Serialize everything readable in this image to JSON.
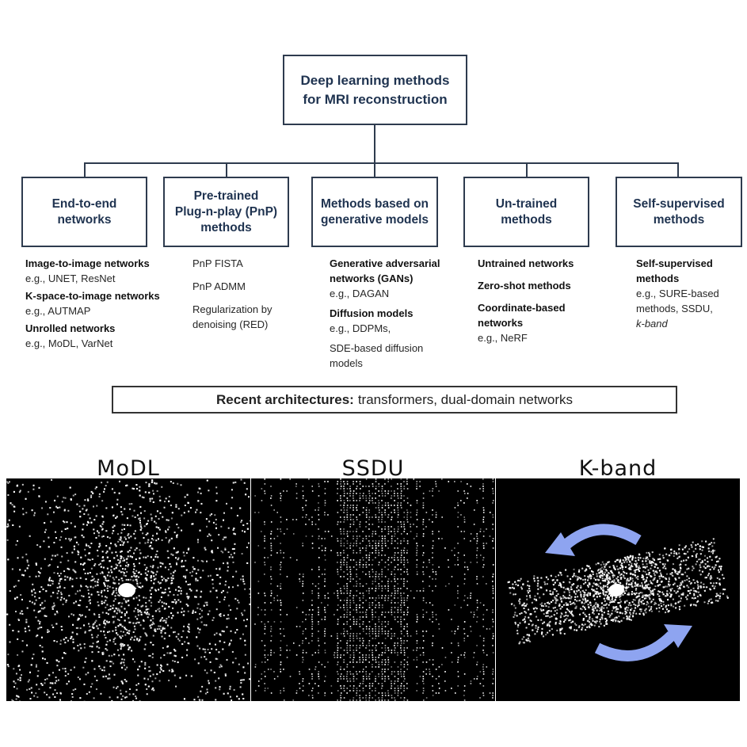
{
  "root": {
    "line1": "Deep learning methods",
    "line2": "for MRI reconstruction"
  },
  "categories": [
    {
      "title_lines": [
        "End-to-end",
        "networks"
      ],
      "items": [
        {
          "bold": "Image-to-image networks",
          "example": "e.g., UNET, ResNet"
        },
        {
          "bold": "K-space-to-image networks",
          "example": "e.g., AUTMAP"
        },
        {
          "bold": "Unrolled networks",
          "example": "e.g., MoDL, VarNet"
        }
      ]
    },
    {
      "title_lines": [
        "Pre-trained",
        "Plug-n-play (PnP)",
        "methods"
      ],
      "items": [
        {
          "text": "PnP FISTA"
        },
        {
          "text": "PnP ADMM"
        },
        {
          "text": "Regularization by denoising (RED)"
        }
      ]
    },
    {
      "title_lines": [
        "Methods based on",
        "generative models"
      ],
      "items": [
        {
          "bold": "Generative adversarial networks (GANs)",
          "example": "e.g., DAGAN"
        },
        {
          "bold": "Diffusion models",
          "example": "e.g., DDPMs,"
        },
        {
          "text": "SDE-based diffusion models"
        }
      ]
    },
    {
      "title_lines": [
        "Un-trained",
        "methods"
      ],
      "items": [
        {
          "bold": "Untrained networks"
        },
        {
          "bold": "Zero-shot methods"
        },
        {
          "bold": "Coordinate-based networks",
          "example": "e.g., NeRF"
        }
      ]
    },
    {
      "title_lines": [
        "Self-supervised",
        "methods"
      ],
      "items": [
        {
          "bold": "Self-supervised methods",
          "example": "e.g., SURE-based methods, SSDU,",
          "italic": "k-band"
        }
      ]
    }
  ],
  "recent": {
    "bold": "Recent architectures:",
    "text": "transformers, dual-domain networks"
  },
  "panels": [
    {
      "title": "MoDL",
      "pattern": "variable-density"
    },
    {
      "title": "SSDU",
      "pattern": "vertical-lines"
    },
    {
      "title": "K-band",
      "pattern": "rotated-band",
      "arrow_color": "#8ea4f0"
    }
  ]
}
